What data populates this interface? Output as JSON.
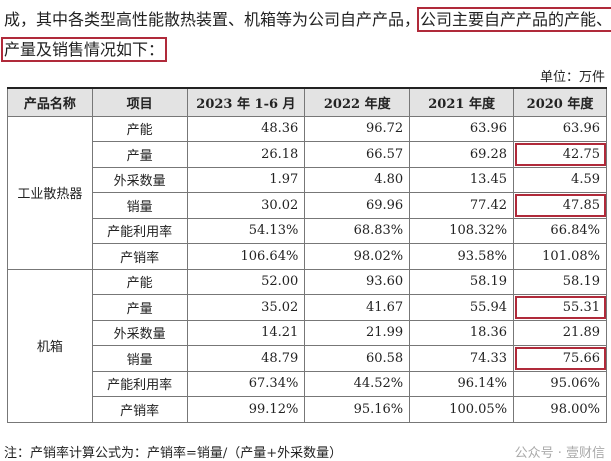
{
  "intro": {
    "line1_plain": "成，其中各类型高性能散热装置、机箱等为公司自产产品，",
    "line1_highlight": "公司主要自产产品的产能、",
    "line2_highlight": "产量及销售情况如下："
  },
  "unit": "单位：万件",
  "table": {
    "headers": [
      "产品名称",
      "项目",
      "2023 年 1-6 月",
      "2022 年度",
      "2021 年度",
      "2020 年度"
    ],
    "groups": [
      {
        "product": "工业散热器",
        "rows": [
          {
            "item": "产能",
            "values": [
              "48.36",
              "96.72",
              "63.96",
              "63.96"
            ]
          },
          {
            "item": "产量",
            "values": [
              "26.18",
              "66.57",
              "69.28",
              "42.75"
            ],
            "highlight_2020": true
          },
          {
            "item": "外采数量",
            "values": [
              "1.97",
              "4.80",
              "13.45",
              "4.59"
            ]
          },
          {
            "item": "销量",
            "values": [
              "30.02",
              "69.96",
              "77.42",
              "47.85"
            ],
            "highlight_2020": true
          },
          {
            "item": "产能利用率",
            "values": [
              "54.13%",
              "68.83%",
              "108.32%",
              "66.84%"
            ]
          },
          {
            "item": "产销率",
            "values": [
              "106.64%",
              "98.02%",
              "93.58%",
              "101.08%"
            ]
          }
        ]
      },
      {
        "product": "机箱",
        "rows": [
          {
            "item": "产能",
            "values": [
              "52.00",
              "93.60",
              "58.19",
              "58.19"
            ]
          },
          {
            "item": "产量",
            "values": [
              "35.02",
              "41.67",
              "55.94",
              "55.31"
            ],
            "highlight_2020": true
          },
          {
            "item": "外采数量",
            "values": [
              "14.21",
              "21.99",
              "18.36",
              "21.89"
            ]
          },
          {
            "item": "销量",
            "values": [
              "48.79",
              "60.58",
              "74.33",
              "75.66"
            ],
            "highlight_2020": true
          },
          {
            "item": "产能利用率",
            "values": [
              "67.34%",
              "44.52%",
              "96.14%",
              "95.06%"
            ]
          },
          {
            "item": "产销率",
            "values": [
              "99.12%",
              "95.16%",
              "100.05%",
              "98.00%"
            ]
          }
        ]
      }
    ]
  },
  "note": "注：产销率计算公式为：产销率=销量/（产量+外采数量）",
  "watermark": "公众号 · 壹财信",
  "highlight_color": "#b02a3a"
}
